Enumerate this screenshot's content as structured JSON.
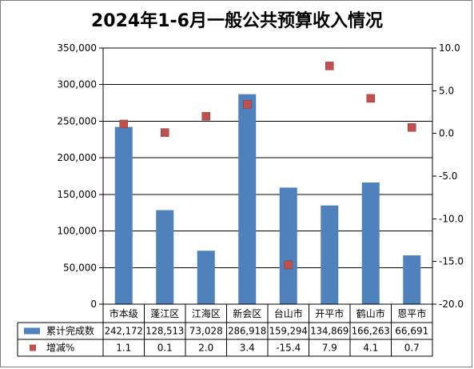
{
  "chart_data": {
    "type": "bar",
    "title": "2024年1-6月一般公共预算收入情况",
    "categories": [
      "市本级",
      "蓬江区",
      "江海区",
      "新会区",
      "台山市",
      "开平市",
      "鹤山市",
      "恩平市"
    ],
    "series": [
      {
        "name": "累计完成数",
        "type": "bar",
        "axis": "left",
        "color": "#4f81bd",
        "values": [
          242172,
          128513,
          73028,
          286918,
          159294,
          134869,
          166263,
          66691
        ],
        "labels": [
          "242,172",
          "128,513",
          "73,028",
          "286,918",
          "159,294",
          "134,869",
          "166,263",
          "66,691"
        ]
      },
      {
        "name": "增减%",
        "type": "scatter",
        "axis": "right",
        "color": "#c0504d",
        "values": [
          1.1,
          0.1,
          2.0,
          3.4,
          -15.4,
          7.9,
          4.1,
          0.7
        ],
        "labels": [
          "1.1",
          "0.1",
          "2.0",
          "3.4",
          "-15.4",
          "7.9",
          "4.1",
          "0.7"
        ]
      }
    ],
    "y_left": {
      "min": 0,
      "max": 350000,
      "ticks": [
        "0",
        "50,000",
        "100,000",
        "150,000",
        "200,000",
        "250,000",
        "300,000",
        "350,000"
      ]
    },
    "y_right": {
      "min": -20,
      "max": 10,
      "ticks": [
        "-20.0",
        "-15.0",
        "-10.0",
        "-5.0",
        "0.0",
        "5.0",
        "10.0"
      ]
    },
    "grid": true,
    "legend": "data-table"
  }
}
